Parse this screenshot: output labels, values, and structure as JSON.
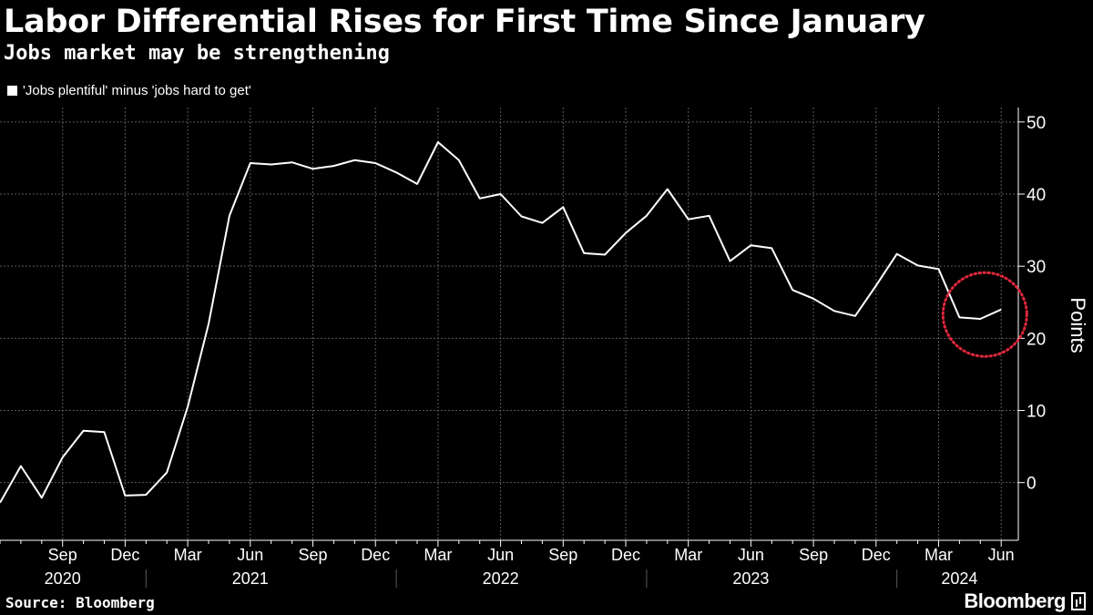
{
  "header": {
    "title": "Labor Differential Rises for First Time Since January",
    "subtitle": "Jobs market may be strengthening",
    "legend_label": "'Jobs plentiful' minus 'jobs hard to get'"
  },
  "footer": {
    "source": "Source: Bloomberg",
    "brand": "Bloomberg"
  },
  "colors": {
    "background": "#000000",
    "line": "#ffffff",
    "grid": "#5a5a5a",
    "highlight_circle": "#e0283c"
  },
  "chart_data": {
    "type": "line",
    "title": "Labor Differential Rises for First Time Since January",
    "subtitle": "Jobs market may be strengthening",
    "ylabel": "Points",
    "ylim": [
      -8,
      52
    ],
    "yticks": [
      0,
      10,
      20,
      30,
      40,
      50
    ],
    "grid": true,
    "x_axis": {
      "month_ticks": [
        {
          "label": "Sep",
          "date": "2020-09"
        },
        {
          "label": "Dec",
          "date": "2020-12"
        },
        {
          "label": "Mar",
          "date": "2021-03"
        },
        {
          "label": "Jun",
          "date": "2021-06"
        },
        {
          "label": "Sep",
          "date": "2021-09"
        },
        {
          "label": "Dec",
          "date": "2021-12"
        },
        {
          "label": "Mar",
          "date": "2022-03"
        },
        {
          "label": "Jun",
          "date": "2022-06"
        },
        {
          "label": "Sep",
          "date": "2022-09"
        },
        {
          "label": "Dec",
          "date": "2022-12"
        },
        {
          "label": "Mar",
          "date": "2023-03"
        },
        {
          "label": "Jun",
          "date": "2023-06"
        },
        {
          "label": "Sep",
          "date": "2023-09"
        },
        {
          "label": "Dec",
          "date": "2023-12"
        },
        {
          "label": "Mar",
          "date": "2024-03"
        },
        {
          "label": "Jun",
          "date": "2024-06"
        }
      ],
      "year_labels": [
        {
          "label": "2020",
          "date": "2020-09"
        },
        {
          "label": "2021",
          "date": "2021-06"
        },
        {
          "label": "2022",
          "date": "2022-06"
        },
        {
          "label": "2023",
          "date": "2023-06"
        },
        {
          "label": "2024",
          "date": "2024-04"
        }
      ]
    },
    "series": [
      {
        "name": "'Jobs plentiful' minus 'jobs hard to get'",
        "x": [
          "2020-06",
          "2020-07",
          "2020-08",
          "2020-09",
          "2020-10",
          "2020-11",
          "2020-12",
          "2021-01",
          "2021-02",
          "2021-03",
          "2021-04",
          "2021-05",
          "2021-06",
          "2021-07",
          "2021-08",
          "2021-09",
          "2021-10",
          "2021-11",
          "2021-12",
          "2022-01",
          "2022-02",
          "2022-03",
          "2022-04",
          "2022-05",
          "2022-06",
          "2022-07",
          "2022-08",
          "2022-09",
          "2022-10",
          "2022-11",
          "2022-12",
          "2023-01",
          "2023-02",
          "2023-03",
          "2023-04",
          "2023-05",
          "2023-06",
          "2023-07",
          "2023-08",
          "2023-09",
          "2023-10",
          "2023-11",
          "2023-12",
          "2024-01",
          "2024-02",
          "2024-03",
          "2024-04",
          "2024-05",
          "2024-06"
        ],
        "values": [
          -2.8,
          2.3,
          -2.1,
          3.5,
          7.2,
          7.0,
          -1.8,
          -1.7,
          1.4,
          10.5,
          22.0,
          37.0,
          44.3,
          44.1,
          44.4,
          43.5,
          43.9,
          44.7,
          44.3,
          43.0,
          41.4,
          47.2,
          44.7,
          39.4,
          40.0,
          36.9,
          36.0,
          38.2,
          31.8,
          31.6,
          34.6,
          37.0,
          40.7,
          36.5,
          37.0,
          30.7,
          32.9,
          32.5,
          26.7,
          25.5,
          23.8,
          23.1,
          27.3,
          31.7,
          30.1,
          29.6,
          22.9,
          22.7,
          24.0
        ]
      }
    ],
    "annotations": [
      {
        "type": "dotted-circle",
        "label": "",
        "around": [
          "2024-04",
          "2024-06"
        ],
        "color": "#e0283c"
      }
    ]
  }
}
